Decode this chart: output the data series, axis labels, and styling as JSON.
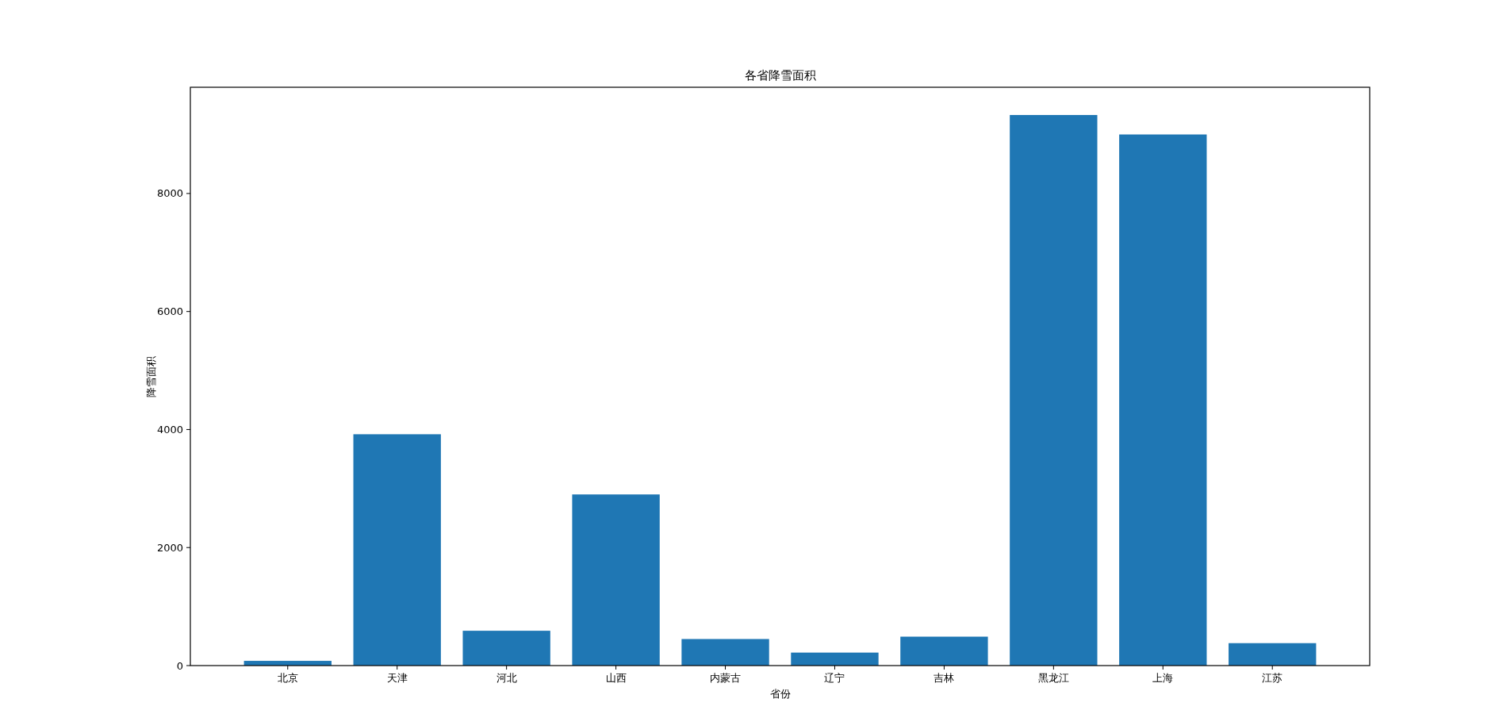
{
  "chart_data": {
    "type": "bar",
    "title": "各省降雪面积",
    "xlabel": "省份",
    "ylabel": "降雪面积",
    "categories": [
      "北京",
      "天津",
      "河北",
      "山西",
      "内蒙古",
      "辽宁",
      "吉林",
      "黑龙江",
      "上海",
      "江苏"
    ],
    "values": [
      80,
      3920,
      590,
      2900,
      450,
      220,
      490,
      9330,
      9000,
      380
    ],
    "color": "#1f77b4",
    "ylim": [
      0,
      9800
    ],
    "yticks": [
      0,
      2000,
      4000,
      6000,
      8000
    ]
  }
}
